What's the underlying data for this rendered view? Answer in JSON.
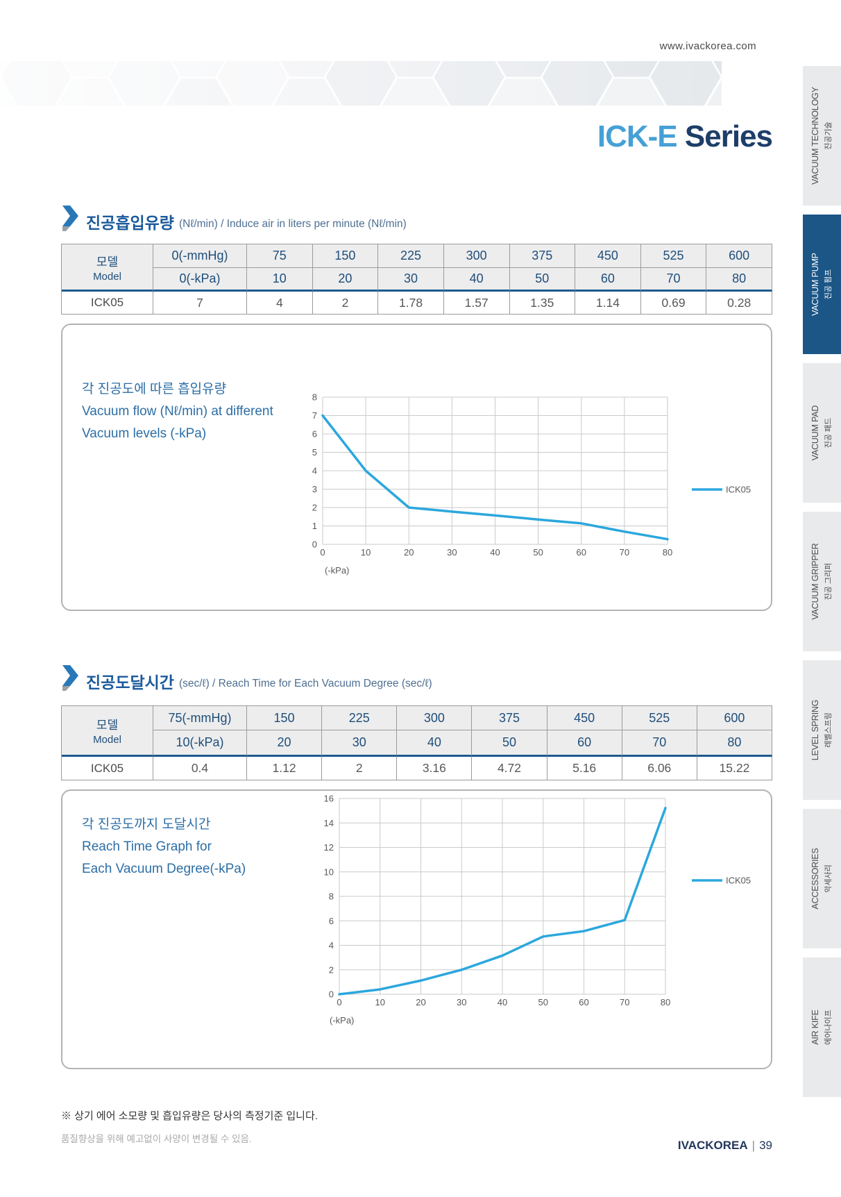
{
  "page": {
    "website": "www.ivackorea.com",
    "title_highlight": "ICK-E",
    "title_rest": " Series",
    "footer_note1": "※ 상기 에어 소모량 및 흡입유량은 당사의 측정기준 입니다.",
    "footer_note2": "품질향상을 위해 예고없이 사양이 변경될 수 있음.",
    "footer_brand": "IVACKOREA",
    "footer_sep": "|",
    "footer_page": "39"
  },
  "colors": {
    "accent": "#2ba7dd",
    "navy": "#1e3e69",
    "section_title": "#1b5a9b",
    "table_header_text": "#1f4e79",
    "table_header_bg": "#ededee",
    "header_rule": "#1d5a8e",
    "sidebar_active_bg": "#1b5687"
  },
  "sidebar": {
    "items": [
      {
        "en": "VACUUM TECHNOLOGY",
        "ko": "진공기술",
        "active": false
      },
      {
        "en": "VACUUM PUMP",
        "ko": "진공 펌프",
        "active": true
      },
      {
        "en": "VACUUM PAD",
        "ko": "진공 패드",
        "active": false
      },
      {
        "en": "VACUUM GRIPPER",
        "ko": "진공 그리퍼",
        "active": false
      },
      {
        "en": "LEVEL SPRING",
        "ko": "레벨스프링",
        "active": false
      },
      {
        "en": "ACCESSORIES",
        "ko": "악세사리",
        "active": false
      },
      {
        "en": "AIR KIFE",
        "ko": "에어나이프",
        "active": false
      }
    ]
  },
  "section1": {
    "title_ko": "진공흡입유량",
    "title_sub": "(Nℓ/min) / Induce air in liters per minute (Nℓ/min)",
    "table": {
      "corner_ko": "모델",
      "corner_en": "Model",
      "header_row1": [
        "0(-mmHg)",
        "75",
        "150",
        "225",
        "300",
        "375",
        "450",
        "525",
        "600"
      ],
      "header_row2": [
        "0(-kPa)",
        "10",
        "20",
        "30",
        "40",
        "50",
        "60",
        "70",
        "80"
      ],
      "model": "ICK05",
      "values": [
        "7",
        "4",
        "2",
        "1.78",
        "1.57",
        "1.35",
        "1.14",
        "0.69",
        "0.28"
      ]
    },
    "chart_label": [
      "각 진공도에 따른 흡입유량",
      "Vacuum flow (Nℓ/min) at different",
      "Vacuum levels (-kPa)"
    ]
  },
  "section2": {
    "title_ko": "진공도달시간",
    "title_sub": "(sec/ℓ) / Reach Time for Each Vacuum Degree (sec/ℓ)",
    "table": {
      "corner_ko": "모델",
      "corner_en": "Model",
      "header_row1": [
        "75(-mmHg)",
        "150",
        "225",
        "300",
        "375",
        "450",
        "525",
        "600"
      ],
      "header_row2": [
        "10(-kPa)",
        "20",
        "30",
        "40",
        "50",
        "60",
        "70",
        "80"
      ],
      "model": "ICK05",
      "values": [
        "0.4",
        "1.12",
        "2",
        "3.16",
        "4.72",
        "5.16",
        "6.06",
        "15.22"
      ]
    },
    "chart_label": [
      "각 진공도까지 도달시간",
      "Reach Time Graph for",
      "Each Vacuum Degree(-kPa)"
    ]
  },
  "chart_data": [
    {
      "type": "line",
      "title": "각 진공도에 따른 흡입유량 / Vacuum flow (Nℓ/min) at different Vacuum levels (-kPa)",
      "x": [
        0,
        10,
        20,
        30,
        40,
        50,
        60,
        70,
        80
      ],
      "series": [
        {
          "name": "ICK05",
          "values": [
            7,
            4,
            2,
            1.78,
            1.57,
            1.35,
            1.14,
            0.69,
            0.28
          ]
        }
      ],
      "xlabel": "(-kPa)",
      "ylabel": "",
      "ylim": [
        0,
        8
      ],
      "ytick_step": 1,
      "grid": true,
      "legend_position": "right"
    },
    {
      "type": "line",
      "title": "각 진공도까지 도달시간 / Reach Time Graph for Each Vacuum Degree(-kPa)",
      "x": [
        0,
        10,
        20,
        30,
        40,
        50,
        60,
        70,
        80
      ],
      "series": [
        {
          "name": "ICK05",
          "values": [
            0,
            0.4,
            1.12,
            2,
            3.16,
            4.72,
            5.16,
            6.06,
            15.22
          ]
        }
      ],
      "xlabel": "(-kPa)",
      "ylabel": "",
      "ylim": [
        0,
        16
      ],
      "ytick_step": 2,
      "grid": true,
      "legend_position": "right"
    }
  ]
}
